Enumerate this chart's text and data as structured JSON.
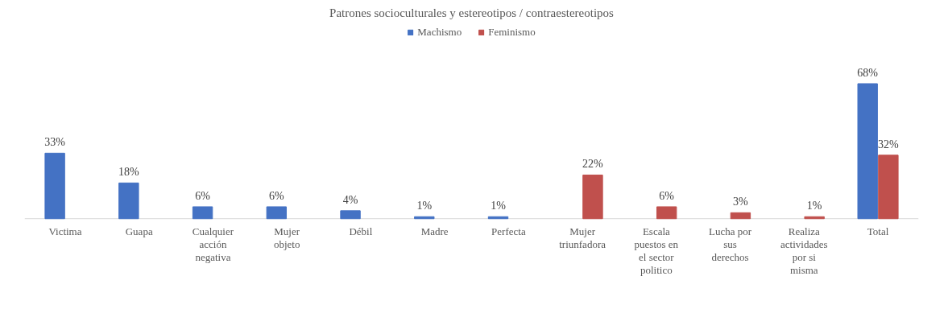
{
  "chart_data": {
    "type": "bar",
    "title": "Patrones socioculturales y estereotipos / contraestereotipos",
    "categories": [
      "Victima",
      "Guapa",
      "Cualquier acción negativa",
      "Mujer objeto",
      "Débil",
      "Madre",
      "Perfecta",
      "Mujer triunfadora",
      "Escala puestos en el sector politico",
      "Lucha por sus derechos",
      "Realiza actividades por si misma",
      "Total"
    ],
    "series": [
      {
        "name": "Machismo",
        "color": "#4472c4",
        "values": [
          33,
          18,
          6,
          6,
          4,
          1,
          1,
          null,
          null,
          null,
          null,
          68
        ],
        "value_labels": [
          "33%",
          "18%",
          "6%",
          "6%",
          "4%",
          "1%",
          "1%",
          null,
          null,
          null,
          null,
          "68%"
        ]
      },
      {
        "name": "Feminismo",
        "color": "#c0504d",
        "values": [
          null,
          null,
          null,
          null,
          null,
          null,
          null,
          22,
          6,
          3,
          1,
          32
        ],
        "value_labels": [
          null,
          null,
          null,
          null,
          null,
          null,
          null,
          "22%",
          "6%",
          "3%",
          "1%",
          "32%"
        ]
      }
    ],
    "legend": "top"
  }
}
